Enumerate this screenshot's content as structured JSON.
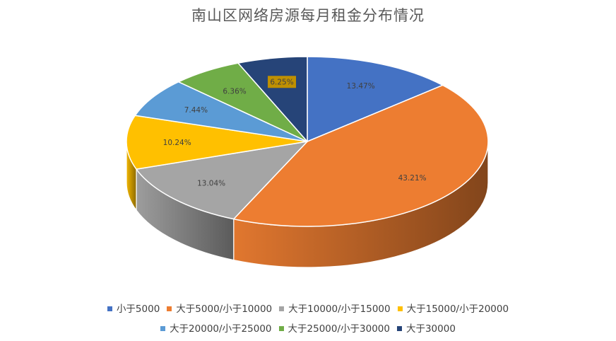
{
  "chart_data": {
    "type": "pie",
    "title": "南山区网络房源每月租金分布情况",
    "categories": [
      "小于5000",
      "大于5000/小于10000",
      "大于10000/小于15000",
      "大于15000/小于20000",
      "大于20000/小于25000",
      "大于25000/小于30000",
      "大于30000"
    ],
    "values": [
      13.47,
      43.21,
      13.04,
      10.24,
      7.44,
      6.36,
      6.25
    ],
    "labels": [
      "13.47%",
      "43.21%",
      "13.04%",
      "10.24%",
      "7.44%",
      "6.36%",
      "6.25%"
    ],
    "colors": [
      "#4472C4",
      "#ED7D31",
      "#A5A5A5",
      "#FFC000",
      "#5B9BD5",
      "#70AD47",
      "#264478"
    ],
    "highlighted_label_index": 6,
    "highlight_color": "#BF9000",
    "legend_position": "bottom",
    "style": "3d-pie"
  }
}
